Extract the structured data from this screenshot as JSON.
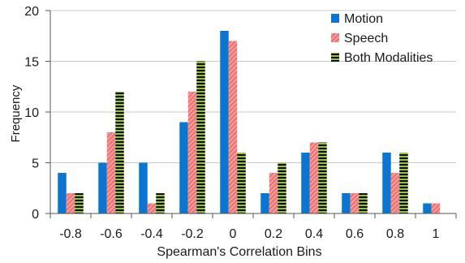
{
  "chart_data": {
    "type": "bar",
    "title": "",
    "xlabel": "Spearman's Correlation Bins",
    "ylabel": "Frequency",
    "categories": [
      "-0.8",
      "-0.6",
      "-0.4",
      "-0.2",
      "0",
      "0.2",
      "0.4",
      "0.6",
      "0.8",
      "1"
    ],
    "ylim": [
      0,
      20
    ],
    "yticks": [
      0,
      5,
      10,
      15,
      20
    ],
    "grid": "horizontal",
    "legend_position": "top-right",
    "series": [
      {
        "name": "Motion",
        "color": "#0a76d1",
        "pattern": "solid",
        "values": [
          4,
          5,
          5,
          9,
          18,
          2,
          6,
          2,
          6,
          1
        ]
      },
      {
        "name": "Speech",
        "color": "#f07a7a",
        "pattern": "diagonal-hatch",
        "values": [
          2,
          8,
          1,
          12,
          17,
          4,
          7,
          2,
          4,
          1
        ]
      },
      {
        "name": "Both Modalities",
        "color": "#8ab53a",
        "pattern": "horizontal-stripes",
        "values": [
          2,
          12,
          2,
          15,
          6,
          5,
          7,
          2,
          6,
          0
        ]
      }
    ]
  }
}
